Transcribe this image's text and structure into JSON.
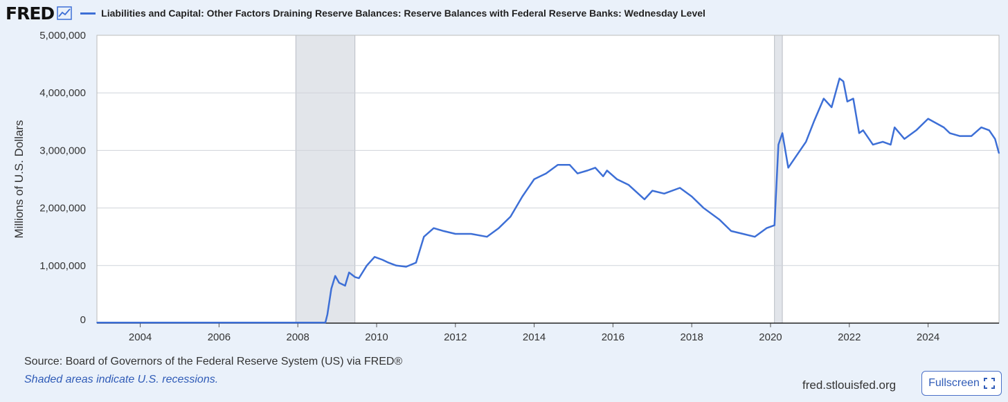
{
  "brand": "FRED",
  "series_title": "Liabilities and Capital: Other Factors Draining Reserve Balances: Reserve Balances with Federal Reserve Banks: Wednesday Level",
  "source": "Source: Board of Governors of the Federal Reserve System (US) via FRED®",
  "note": "Shaded areas indicate U.S. recessions.",
  "site": "fred.stlouisfed.org",
  "fullscreen_label": "Fullscreen",
  "colors": {
    "line": "#3d6fd6",
    "recession": "#e2e5ea",
    "background": "#eaf1fa"
  },
  "chart_data": {
    "type": "line",
    "title": "Liabilities and Capital: Other Factors Draining Reserve Balances: Reserve Balances with Federal Reserve Banks: Wednesday Level",
    "xlabel": "",
    "ylabel": "Millions of U.S. Dollars",
    "xlim": [
      2002.9,
      2025.8
    ],
    "ylim": [
      0,
      5000000
    ],
    "x_ticks": [
      2004,
      2006,
      2008,
      2010,
      2012,
      2014,
      2016,
      2018,
      2020,
      2022,
      2024
    ],
    "y_ticks": [
      0,
      1000000,
      2000000,
      3000000,
      4000000,
      5000000
    ],
    "y_tick_labels": [
      "0",
      "1,000,000",
      "2,000,000",
      "3,000,000",
      "4,000,000",
      "5,000,000"
    ],
    "recessions": [
      [
        2007.95,
        2009.45
      ],
      [
        2020.1,
        2020.3
      ]
    ],
    "grid": true,
    "series": [
      {
        "x": [
          2002.9,
          2008.0,
          2008.7,
          2008.75,
          2008.85,
          2008.95,
          2009.05,
          2009.2,
          2009.3,
          2009.45,
          2009.55,
          2009.75,
          2009.95,
          2010.15,
          2010.3,
          2010.5,
          2010.75,
          2011.0,
          2011.2,
          2011.45,
          2011.7,
          2012.0,
          2012.4,
          2012.8,
          2013.1,
          2013.4,
          2013.7,
          2014.0,
          2014.3,
          2014.6,
          2014.9,
          2015.1,
          2015.35,
          2015.55,
          2015.75,
          2015.85,
          2016.1,
          2016.4,
          2016.8,
          2017.0,
          2017.3,
          2017.7,
          2018.0,
          2018.3,
          2018.7,
          2019.0,
          2019.3,
          2019.6,
          2019.9,
          2020.1,
          2020.2,
          2020.3,
          2020.45,
          2020.6,
          2020.9,
          2021.1,
          2021.35,
          2021.55,
          2021.75,
          2021.85,
          2021.95,
          2022.1,
          2022.25,
          2022.35,
          2022.6,
          2022.85,
          2023.05,
          2023.15,
          2023.4,
          2023.7,
          2024.0,
          2024.4,
          2024.55,
          2024.8,
          2025.1,
          2025.35,
          2025.55,
          2025.7,
          2025.8
        ],
        "values": [
          10000,
          10000,
          10000,
          150000,
          600000,
          820000,
          700000,
          650000,
          880000,
          800000,
          780000,
          1000000,
          1150000,
          1100000,
          1050000,
          1000000,
          980000,
          1050000,
          1500000,
          1650000,
          1600000,
          1550000,
          1550000,
          1500000,
          1650000,
          1850000,
          2200000,
          2500000,
          2600000,
          2750000,
          2750000,
          2600000,
          2650000,
          2700000,
          2550000,
          2650000,
          2500000,
          2400000,
          2150000,
          2300000,
          2250000,
          2350000,
          2200000,
          2000000,
          1800000,
          1600000,
          1550000,
          1500000,
          1650000,
          1700000,
          3100000,
          3300000,
          2700000,
          2850000,
          3150000,
          3500000,
          3900000,
          3750000,
          4250000,
          4200000,
          3850000,
          3900000,
          3300000,
          3350000,
          3100000,
          3150000,
          3100000,
          3400000,
          3200000,
          3350000,
          3550000,
          3400000,
          3300000,
          3250000,
          3250000,
          3400000,
          3350000,
          3200000,
          2950000
        ]
      }
    ]
  }
}
